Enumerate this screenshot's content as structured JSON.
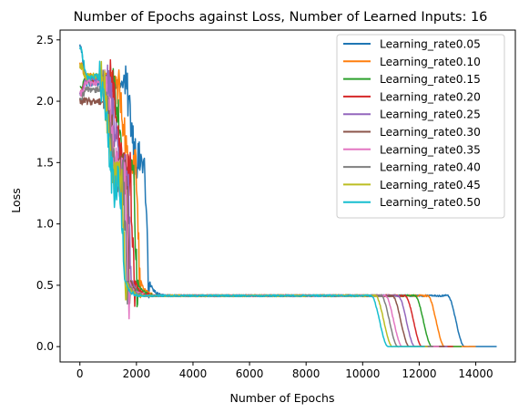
{
  "chart_data": {
    "type": "line",
    "title": "Number of Epochs against Loss, Number of Learned Inputs: 16",
    "xlabel": "Number of Epochs",
    "ylabel": "Loss",
    "xlim": [
      -700,
      15400
    ],
    "ylim": [
      -0.125,
      2.58
    ],
    "xticks": [
      0,
      2000,
      4000,
      6000,
      8000,
      10000,
      12000,
      14000
    ],
    "yticks": [
      0.0,
      0.5,
      1.0,
      1.5,
      2.0,
      2.5
    ],
    "xtick_labels": [
      "0",
      "2000",
      "4000",
      "6000",
      "8000",
      "10000",
      "12000",
      "14000"
    ],
    "ytick_labels": [
      "0.0",
      "0.5",
      "1.0",
      "1.5",
      "2.0",
      "2.5"
    ],
    "grid": false,
    "legend_position": "upper right",
    "series": [
      {
        "name": "Learning_rate0.05",
        "color": "#1f77b4",
        "end_epoch": 14750,
        "initial_loss": 2.45,
        "early_noisy_level": 2.15,
        "drop_epoch": 2450,
        "shoulder_loss": 1.5,
        "plateau_loss": 0.415,
        "final_drop_epoch": 13200,
        "final_loss": 0.0
      },
      {
        "name": "Learning_rate0.10",
        "color": "#ff7f0e",
        "end_epoch": 14000,
        "initial_loss": 2.3,
        "early_noisy_level": 2.2,
        "drop_epoch": 2150,
        "shoulder_loss": 1.45,
        "plateau_loss": 0.415,
        "final_drop_epoch": 12500,
        "final_loss": 0.0
      },
      {
        "name": "Learning_rate0.15",
        "color": "#2ca02c",
        "end_epoch": 13500,
        "initial_loss": 2.1,
        "early_noisy_level": 2.18,
        "drop_epoch": 2050,
        "shoulder_loss": 1.42,
        "plateau_loss": 0.415,
        "final_drop_epoch": 12050,
        "final_loss": 0.0
      },
      {
        "name": "Learning_rate0.20",
        "color": "#d62728",
        "end_epoch": 13200,
        "initial_loss": 2.05,
        "early_noisy_level": 2.18,
        "drop_epoch": 1950,
        "shoulder_loss": 1.4,
        "plateau_loss": 0.415,
        "final_drop_epoch": 11700,
        "final_loss": 0.0
      },
      {
        "name": "Learning_rate0.25",
        "color": "#9467bd",
        "end_epoch": 13000,
        "initial_loss": 2.05,
        "early_noisy_level": 2.18,
        "drop_epoch": 1850,
        "shoulder_loss": 1.4,
        "plateau_loss": 0.415,
        "final_drop_epoch": 11450,
        "final_loss": 0.0
      },
      {
        "name": "Learning_rate0.30",
        "color": "#8c564b",
        "end_epoch": 12900,
        "initial_loss": 2.0,
        "early_noisy_level": 2.0,
        "drop_epoch": 1800,
        "shoulder_loss": 1.38,
        "plateau_loss": 0.415,
        "final_drop_epoch": 11250,
        "final_loss": 0.0
      },
      {
        "name": "Learning_rate0.35",
        "color": "#e377c2",
        "end_epoch": 12700,
        "initial_loss": 2.05,
        "early_noisy_level": 2.15,
        "drop_epoch": 1750,
        "shoulder_loss": 1.38,
        "plateau_loss": 0.415,
        "final_drop_epoch": 11000,
        "final_loss": 0.0
      },
      {
        "name": "Learning_rate0.40",
        "color": "#7f7f7f",
        "end_epoch": 12500,
        "initial_loss": 2.0,
        "early_noisy_level": 2.1,
        "drop_epoch": 1700,
        "shoulder_loss": 1.36,
        "plateau_loss": 0.415,
        "final_drop_epoch": 10850,
        "final_loss": 0.0
      },
      {
        "name": "Learning_rate0.45",
        "color": "#bcbd22",
        "end_epoch": 12300,
        "initial_loss": 2.3,
        "early_noisy_level": 2.2,
        "drop_epoch": 1650,
        "shoulder_loss": 1.35,
        "plateau_loss": 0.415,
        "final_drop_epoch": 10650,
        "final_loss": 0.0
      },
      {
        "name": "Learning_rate0.50",
        "color": "#17becf",
        "end_epoch": 12200,
        "initial_loss": 2.45,
        "early_noisy_level": 2.2,
        "drop_epoch": 1600,
        "shoulder_loss": 1.3,
        "plateau_loss": 0.415,
        "final_drop_epoch": 10500,
        "final_loss": 0.0
      }
    ]
  }
}
